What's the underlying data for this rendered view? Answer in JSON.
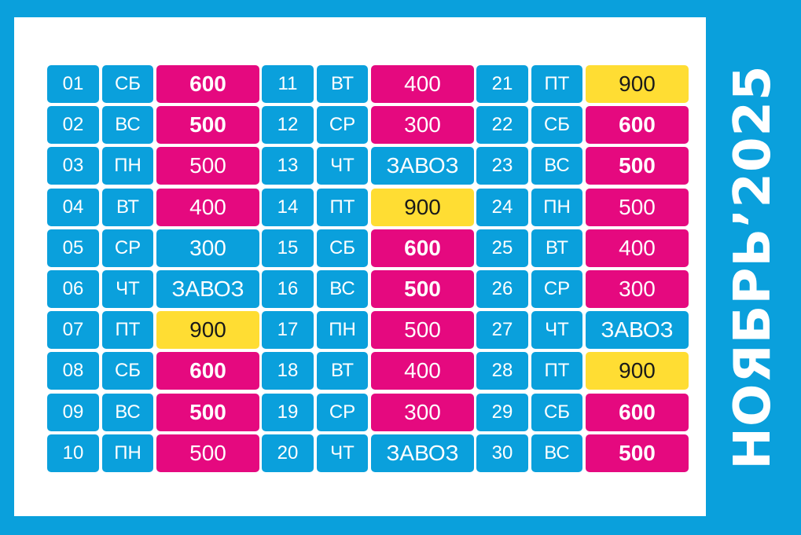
{
  "title": "НОЯБРЬ’2025",
  "colors": {
    "blue": "#0AA0DC",
    "magenta": "#E5097F",
    "yellow": "#FFDD33",
    "white": "#FFFFFF"
  },
  "columns": [
    {
      "rows": [
        {
          "day": "01",
          "weekday": "СБ",
          "value": "600",
          "type": "bold"
        },
        {
          "day": "02",
          "weekday": "ВС",
          "value": "500",
          "type": "bold"
        },
        {
          "day": "03",
          "weekday": "ПН",
          "value": "500",
          "type": "price"
        },
        {
          "day": "04",
          "weekday": "ВТ",
          "value": "400",
          "type": "price"
        },
        {
          "day": "05",
          "weekday": "СР",
          "value": "300",
          "type": "blue"
        },
        {
          "day": "06",
          "weekday": "ЧТ",
          "value": "ЗАВОЗ",
          "type": "blue"
        },
        {
          "day": "07",
          "weekday": "ПТ",
          "value": "900",
          "type": "yellow"
        },
        {
          "day": "08",
          "weekday": "СБ",
          "value": "600",
          "type": "bold"
        },
        {
          "day": "09",
          "weekday": "ВС",
          "value": "500",
          "type": "bold"
        },
        {
          "day": "10",
          "weekday": "ПН",
          "value": "500",
          "type": "price"
        }
      ]
    },
    {
      "rows": [
        {
          "day": "11",
          "weekday": "ВТ",
          "value": "400",
          "type": "price"
        },
        {
          "day": "12",
          "weekday": "СР",
          "value": "300",
          "type": "price"
        },
        {
          "day": "13",
          "weekday": "ЧТ",
          "value": "ЗАВОЗ",
          "type": "blue"
        },
        {
          "day": "14",
          "weekday": "ПТ",
          "value": "900",
          "type": "yellow"
        },
        {
          "day": "15",
          "weekday": "СБ",
          "value": "600",
          "type": "bold"
        },
        {
          "day": "16",
          "weekday": "ВС",
          "value": "500",
          "type": "bold"
        },
        {
          "day": "17",
          "weekday": "ПН",
          "value": "500",
          "type": "price"
        },
        {
          "day": "18",
          "weekday": "ВТ",
          "value": "400",
          "type": "price"
        },
        {
          "day": "19",
          "weekday": "СР",
          "value": "300",
          "type": "price"
        },
        {
          "day": "20",
          "weekday": "ЧТ",
          "value": "ЗАВОЗ",
          "type": "blue"
        }
      ]
    },
    {
      "rows": [
        {
          "day": "21",
          "weekday": "ПТ",
          "value": "900",
          "type": "yellow"
        },
        {
          "day": "22",
          "weekday": "СБ",
          "value": "600",
          "type": "bold"
        },
        {
          "day": "23",
          "weekday": "ВС",
          "value": "500",
          "type": "bold"
        },
        {
          "day": "24",
          "weekday": "ПН",
          "value": "500",
          "type": "price"
        },
        {
          "day": "25",
          "weekday": "ВТ",
          "value": "400",
          "type": "price"
        },
        {
          "day": "26",
          "weekday": "СР",
          "value": "300",
          "type": "price"
        },
        {
          "day": "27",
          "weekday": "ЧТ",
          "value": "ЗАВОЗ",
          "type": "blue"
        },
        {
          "day": "28",
          "weekday": "ПТ",
          "value": "900",
          "type": "yellow"
        },
        {
          "day": "29",
          "weekday": "СБ",
          "value": "600",
          "type": "bold"
        },
        {
          "day": "30",
          "weekday": "ВС",
          "value": "500",
          "type": "bold"
        }
      ]
    }
  ]
}
